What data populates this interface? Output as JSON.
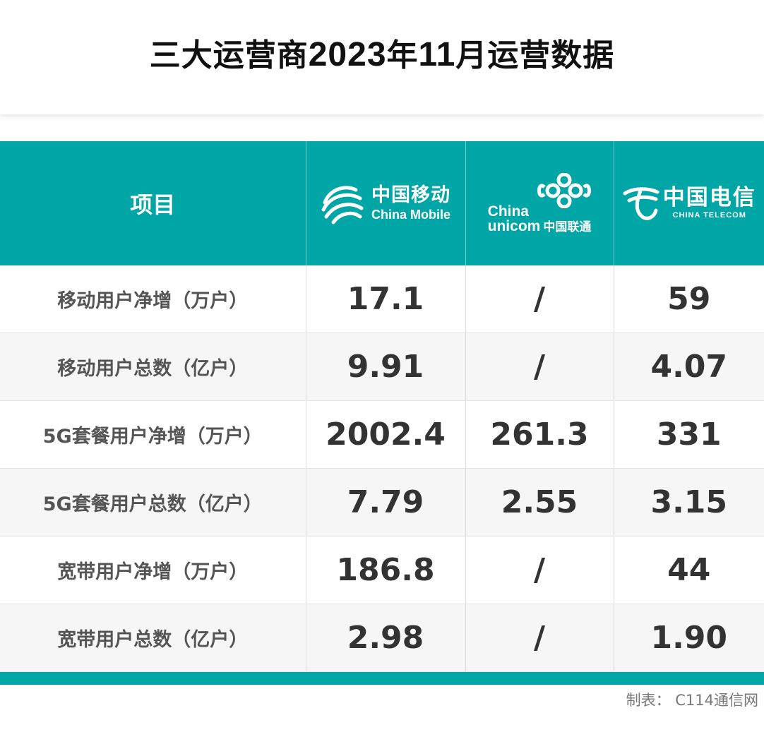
{
  "title": {
    "part1": "三大运营商",
    "year": "2023",
    "part2": "年",
    "month": "11",
    "part3": "月运营数据"
  },
  "table": {
    "header": {
      "item": "项目",
      "china_mobile": {
        "cn": "中国移动",
        "en": "China Mobile"
      },
      "china_unicom": {
        "en_top": "China",
        "en_bottom": "unicom",
        "cn": "中国联通"
      },
      "china_telecom": {
        "cn": "中国电信",
        "en": "CHINA TELECOM"
      }
    },
    "rows": [
      {
        "label": "移动用户净增（万户）",
        "mobile": "17.1",
        "unicom": "/",
        "telecom": "59"
      },
      {
        "label": "移动用户总数（亿户）",
        "mobile": "9.91",
        "unicom": "/",
        "telecom": "4.07"
      },
      {
        "label": "5G套餐用户净增（万户）",
        "mobile": "2002.4",
        "unicom": "261.3",
        "telecom": "331"
      },
      {
        "label": "5G套餐用户总数（亿户）",
        "mobile": "7.79",
        "unicom": "2.55",
        "telecom": "3.15"
      },
      {
        "label": "宽带用户净增（万户）",
        "mobile": "186.8",
        "unicom": "/",
        "telecom": "44"
      },
      {
        "label": "宽带用户总数（亿户）",
        "mobile": "2.98",
        "unicom": "/",
        "telecom": "1.90"
      }
    ]
  },
  "credit": "制表：  C114通信网",
  "colors": {
    "accent": "#00a6a6",
    "text": "#333333",
    "label": "#555555"
  },
  "icons": [
    "china-mobile-logo-icon",
    "china-unicom-logo-icon",
    "china-telecom-logo-icon"
  ]
}
